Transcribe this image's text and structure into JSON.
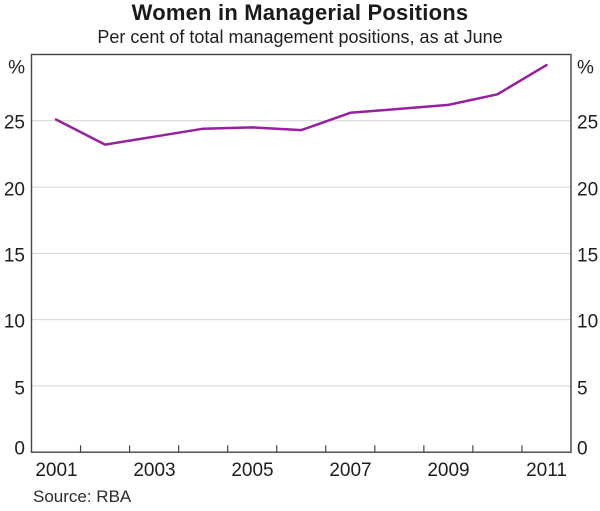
{
  "chart_data": {
    "type": "line",
    "title": "Women in Managerial Positions",
    "subtitle": "Per cent of total management positions, as at June",
    "unit_left": "%",
    "unit_right": "%",
    "x": [
      2001,
      2002,
      2003,
      2004,
      2005,
      2006,
      2007,
      2008,
      2009,
      2010,
      2011
    ],
    "series": [
      {
        "name": "Women in managerial positions",
        "values": [
          25.1,
          23.2,
          23.8,
          24.4,
          24.5,
          24.3,
          25.6,
          25.9,
          26.2,
          27.0,
          29.2
        ]
      }
    ],
    "xlim": [
      2000.5,
      2011.5
    ],
    "ylim": [
      0,
      30
    ],
    "yticks": [
      0,
      5,
      10,
      15,
      20,
      25
    ],
    "ytick_labels": [
      "0",
      "5",
      "10",
      "15",
      "20",
      "25"
    ],
    "xtick_labels": [
      "2001",
      "2003",
      "2005",
      "2007",
      "2009",
      "2011"
    ],
    "grid": "horizontal",
    "legend": "none",
    "source": "Source: RBA",
    "colors": {
      "line": "#97219c",
      "grid": "#d4d4d4",
      "axis": "#454545",
      "text": "#1e1e1e"
    }
  }
}
